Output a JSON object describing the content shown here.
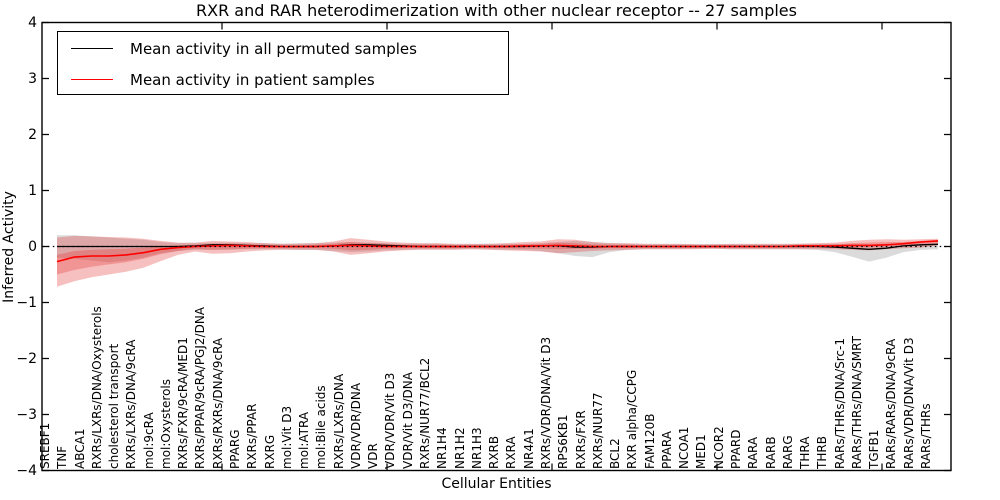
{
  "figure": {
    "title": "RXR and RAR heterodimerization with other nuclear receptor -- 27 samples",
    "x_axis_label": "Cellular Entities",
    "y_axis_label": "Inferred Activity"
  },
  "legend": {
    "position": "upper left",
    "items": [
      {
        "label": "Mean activity in all permuted samples",
        "color": "#000000"
      },
      {
        "label": "Mean activity in patient samples",
        "color": "#ff0000"
      }
    ]
  },
  "chart_data": {
    "type": "line",
    "title": "RXR and RAR heterodimerization with other nuclear receptor -- 27 samples",
    "xlabel": "Cellular Entities",
    "ylabel": "Inferred Activity",
    "ylim": [
      -4,
      4
    ],
    "yticks": [
      "4",
      "3",
      "2",
      "1",
      "0",
      "−1",
      "−2",
      "−3",
      "−4"
    ],
    "grid": false,
    "zero_line_style": "black dotted",
    "legend_position": "upper left",
    "categories": [
      "SREBF1",
      "TNF",
      "ABCA1",
      "RXRs/LXRs/DNA/Oxysterols",
      "cholesterol transport",
      "RXRs/LXRs/DNA/9cRA",
      "mol:9cRA",
      "mol:Oxysterols",
      "RXRs/FXR/9cRA/MED1",
      "RXRs/PPAR/9cRA/PGJ2/DNA",
      "RXRs/RXRs/DNA/9cRA",
      "PPARG",
      "RXRs/PPAR",
      "RXRG",
      "mol:Vit D3",
      "mol:ATRA",
      "mol:Bile acids",
      "RXRs/LXRs/DNA",
      "VDR/VDR/DNA",
      "VDR",
      "VDR/VDR/Vit D3",
      "VDR/Vit D3/DNA",
      "RXRs/NUR77/BCL2",
      "NR1H4",
      "NR1H2",
      "NR1H3",
      "RXRB",
      "RXRA",
      "NR4A1",
      "RXRs/VDR/DNA/Vit D3",
      "RPS6KB1",
      "RXRs/FXR",
      "RXRs/NUR77",
      "BCL2",
      "RXR alpha/CCPG",
      "FAM120B",
      "PPARA",
      "NCOA1",
      "MED1",
      "NCOR2",
      "PPARD",
      "RARA",
      "RARB",
      "RARG",
      "THRA",
      "THRB",
      "RARs/THRs/DNA/Src-1",
      "RARs/THRs/DNA/SMRT",
      "TGFB1",
      "RARs/RARs/DNA/9cRA",
      "RARs/VDR/DNA/Vit D3",
      "RARs/THRs"
    ],
    "series": [
      {
        "name": "Mean activity in all permuted samples",
        "color": "#000000",
        "values": [
          0,
          0,
          0,
          0,
          0,
          0,
          0,
          0,
          0.01,
          0.03,
          0.03,
          0.02,
          0.01,
          0,
          0,
          0,
          0.01,
          0.03,
          0.03,
          0.02,
          0.01,
          0,
          0,
          0,
          0,
          0,
          0,
          0,
          0.01,
          0.01,
          -0.01,
          -0.01,
          0,
          0,
          0,
          0,
          0,
          0,
          0,
          0,
          0,
          0,
          0,
          0,
          0,
          -0.01,
          -0.03,
          -0.05,
          -0.03,
          0.01,
          0.03,
          0.04
        ]
      },
      {
        "name": "Mean activity in patient samples",
        "color": "#ff0000",
        "values": [
          -0.27,
          -0.19,
          -0.17,
          -0.17,
          -0.15,
          -0.11,
          -0.05,
          -0.02,
          0,
          0.01,
          0.02,
          0.01,
          0,
          0,
          0,
          0,
          0.01,
          0.02,
          0.01,
          0,
          0,
          0,
          0,
          0,
          0,
          0,
          0,
          0.01,
          0.01,
          0.02,
          0.01,
          0,
          0,
          0,
          0,
          0,
          0,
          0,
          0,
          0,
          0,
          0,
          0,
          0.01,
          0.01,
          0.01,
          0.02,
          0.02,
          0.03,
          0.05,
          0.08,
          0.1
        ]
      }
    ],
    "bands": [
      {
        "name": "permuted samples spread",
        "color": "#999999",
        "opacity": 0.35,
        "upper": [
          0.2,
          0.2,
          0.18,
          0.16,
          0.14,
          0.12,
          0.08,
          0.06,
          0.06,
          0.07,
          0.07,
          0.06,
          0.06,
          0.05,
          0.06,
          0.06,
          0.07,
          0.08,
          0.07,
          0.06,
          0.05,
          0.05,
          0.05,
          0.04,
          0.04,
          0.05,
          0.05,
          0.05,
          0.06,
          0.08,
          0.1,
          0.08,
          0.06,
          0.05,
          0.04,
          0.04,
          0.04,
          0.04,
          0.04,
          0.04,
          0.04,
          0.04,
          0.04,
          0.05,
          0.05,
          0.05,
          0.04,
          0.03,
          0.04,
          0.05,
          0.05,
          0.06
        ],
        "lower": [
          -0.2,
          -0.22,
          -0.25,
          -0.28,
          -0.25,
          -0.2,
          -0.12,
          -0.08,
          -0.06,
          -0.06,
          -0.06,
          -0.05,
          -0.05,
          -0.05,
          -0.06,
          -0.06,
          -0.08,
          -0.1,
          -0.09,
          -0.07,
          -0.06,
          -0.05,
          -0.05,
          -0.05,
          -0.05,
          -0.05,
          -0.06,
          -0.06,
          -0.08,
          -0.12,
          -0.17,
          -0.19,
          -0.1,
          -0.06,
          -0.05,
          -0.05,
          -0.05,
          -0.04,
          -0.04,
          -0.05,
          -0.05,
          -0.05,
          -0.05,
          -0.05,
          -0.06,
          -0.1,
          -0.18,
          -0.27,
          -0.2,
          -0.1,
          -0.06,
          -0.05
        ]
      },
      {
        "name": "patient samples outer spread",
        "color": "#e63030",
        "opacity": 0.3,
        "upper": [
          0.16,
          0.19,
          0.18,
          0.17,
          0.16,
          0.14,
          0.1,
          0.07,
          0.07,
          0.1,
          0.09,
          0.08,
          0.06,
          0.05,
          0.05,
          0.06,
          0.09,
          0.15,
          0.12,
          0.09,
          0.07,
          0.06,
          0.06,
          0.05,
          0.05,
          0.05,
          0.06,
          0.08,
          0.09,
          0.13,
          0.12,
          0.08,
          0.06,
          0.06,
          0.05,
          0.05,
          0.05,
          0.04,
          0.04,
          0.05,
          0.05,
          0.05,
          0.05,
          0.05,
          0.06,
          0.07,
          0.1,
          0.12,
          0.13,
          0.12,
          0.13,
          0.14
        ],
        "lower": [
          -0.72,
          -0.62,
          -0.55,
          -0.5,
          -0.45,
          -0.38,
          -0.26,
          -0.15,
          -0.09,
          -0.13,
          -0.12,
          -0.09,
          -0.07,
          -0.06,
          -0.06,
          -0.06,
          -0.09,
          -0.15,
          -0.12,
          -0.09,
          -0.07,
          -0.06,
          -0.06,
          -0.06,
          -0.05,
          -0.06,
          -0.07,
          -0.08,
          -0.09,
          -0.12,
          -0.1,
          -0.08,
          -0.07,
          -0.06,
          -0.05,
          -0.05,
          -0.05,
          -0.05,
          -0.04,
          -0.05,
          -0.05,
          -0.05,
          -0.05,
          -0.05,
          -0.05,
          -0.05,
          -0.06,
          -0.07,
          -0.05,
          -0.03,
          -0.02,
          0.02
        ]
      },
      {
        "name": "patient samples inner spread",
        "color": "#e63030",
        "opacity": 0.3,
        "upper": [
          -0.15,
          -0.08,
          -0.06,
          -0.05,
          -0.04,
          -0.02,
          0.0,
          0.02,
          0.03,
          0.05,
          0.05,
          0.04,
          0.03,
          0.02,
          0.02,
          0.03,
          0.05,
          0.08,
          0.06,
          0.05,
          0.03,
          0.03,
          0.03,
          0.02,
          0.02,
          0.02,
          0.03,
          0.04,
          0.05,
          0.07,
          0.06,
          0.04,
          0.03,
          0.03,
          0.02,
          0.02,
          0.02,
          0.02,
          0.02,
          0.02,
          0.02,
          0.02,
          0.02,
          0.03,
          0.03,
          0.04,
          0.06,
          0.07,
          0.08,
          0.08,
          0.1,
          0.12
        ],
        "lower": [
          -0.5,
          -0.42,
          -0.36,
          -0.32,
          -0.28,
          -0.22,
          -0.14,
          -0.08,
          -0.04,
          -0.06,
          -0.05,
          -0.04,
          -0.03,
          -0.03,
          -0.03,
          -0.03,
          -0.04,
          -0.07,
          -0.06,
          -0.04,
          -0.03,
          -0.03,
          -0.03,
          -0.03,
          -0.02,
          -0.03,
          -0.03,
          -0.04,
          -0.04,
          -0.05,
          -0.04,
          -0.04,
          -0.03,
          -0.03,
          -0.02,
          -0.02,
          -0.02,
          -0.02,
          -0.02,
          -0.02,
          -0.02,
          -0.02,
          -0.02,
          -0.02,
          -0.02,
          -0.02,
          -0.02,
          -0.01,
          0.0,
          0.02,
          0.04,
          0.06
        ]
      }
    ]
  }
}
